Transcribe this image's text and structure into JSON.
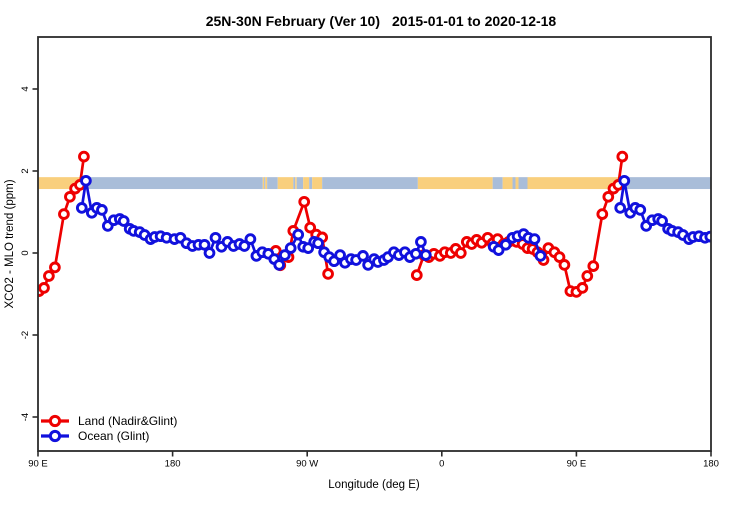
{
  "title": {
    "main": "25N-30N February (Ver 10)",
    "dates": "2015-01-01 to 2020-12-18"
  },
  "chart_data": {
    "type": "line",
    "title": "25N-30N February (Ver 10)  2015-01-01 to 2020-12-18",
    "xlabel": "Longitude (deg E)",
    "ylabel": "XCO2 - MLO trend (ppm)",
    "x_axis": {
      "range": [
        90,
        540
      ],
      "ticks": [
        90,
        180,
        270,
        360,
        450,
        540
      ],
      "tick_labels": [
        "90 E",
        "180",
        "90 W",
        "0",
        "90 E",
        "180"
      ],
      "note": "longitude wraps eastward from 90E through 180, 90W, 0, 90E, to 180"
    },
    "y_axis": {
      "range": [
        -4.83,
        5.27
      ],
      "ticks": [
        -4,
        -2,
        0,
        2,
        4
      ],
      "tick_labels": [
        "-4",
        "-2",
        "0",
        "2",
        "4"
      ]
    },
    "grid": false,
    "legend": {
      "position": "bottom-left",
      "entries": [
        {
          "label": "Land (Nadir&Glint)",
          "color": "#ee0000"
        },
        {
          "label": "Ocean (Glint)",
          "color": "#1111dd"
        }
      ]
    },
    "series": [
      {
        "name": "Land (Nadir&Glint)",
        "color": "#ee0000",
        "marker": "open-circle",
        "segments": [
          [
            [
              90.7,
              -0.93
            ],
            [
              94,
              -0.85
            ],
            [
              97.3,
              -0.56
            ],
            [
              101.3,
              -0.35
            ],
            [
              107.3,
              0.95
            ],
            [
              111.3,
              1.37
            ],
            [
              114.8,
              1.57
            ],
            [
              118,
              1.66
            ],
            [
              120.7,
              2.35
            ]
          ],
          [
            [
              249,
              0.05
            ],
            [
              252,
              -0.3
            ],
            [
              257.5,
              -0.1
            ],
            [
              260.7,
              0.54
            ],
            [
              268,
              1.25
            ],
            [
              272,
              0.62
            ],
            [
              276,
              0.45
            ],
            [
              280,
              0.38
            ],
            [
              284,
              -0.51
            ]
          ],
          [
            [
              343.3,
              -0.54
            ],
            [
              348,
              -0.05
            ],
            [
              351.3,
              -0.1
            ],
            [
              354.7,
              -0.02
            ],
            [
              358.7,
              -0.07
            ],
            [
              362,
              0.02
            ],
            [
              366,
              0
            ],
            [
              369.3,
              0.1
            ],
            [
              372.7,
              0
            ],
            [
              376.7,
              0.27
            ],
            [
              380,
              0.22
            ],
            [
              383.3,
              0.32
            ],
            [
              386.7,
              0.25
            ],
            [
              390.7,
              0.37
            ],
            [
              394,
              0.24
            ],
            [
              397.3,
              0.34
            ],
            [
              401.3,
              0.22
            ],
            [
              404.7,
              0.27
            ],
            [
              410,
              0.27
            ],
            [
              414,
              0.22
            ],
            [
              417.3,
              0.12
            ],
            [
              420.7,
              0.1
            ],
            [
              424,
              0.02
            ],
            [
              428,
              -0.17
            ],
            [
              431.3,
              0.12
            ],
            [
              435.3,
              0.02
            ],
            [
              438.7,
              -0.1
            ],
            [
              442,
              -0.29
            ],
            [
              446,
              -0.93
            ],
            [
              450,
              -0.95
            ],
            [
              454,
              -0.85
            ],
            [
              457.3,
              -0.56
            ],
            [
              461.3,
              -0.32
            ],
            [
              467.3,
              0.95
            ],
            [
              471.3,
              1.37
            ],
            [
              474.8,
              1.57
            ],
            [
              478,
              1.66
            ],
            [
              480.7,
              2.35
            ]
          ]
        ]
      },
      {
        "name": "Ocean (Glint)",
        "color": "#1111dd",
        "marker": "open-circle",
        "segments": [
          [
            [
              119.3,
              1.1
            ],
            [
              122,
              1.76
            ],
            [
              126,
              0.98
            ],
            [
              129.3,
              1.1
            ],
            [
              132.7,
              1.05
            ],
            [
              136.7,
              0.66
            ],
            [
              140.7,
              0.8
            ],
            [
              144.7,
              0.83
            ],
            [
              147.3,
              0.78
            ],
            [
              151.3,
              0.59
            ],
            [
              154,
              0.54
            ],
            [
              158,
              0.51
            ],
            [
              161.3,
              0.44
            ],
            [
              165.3,
              0.34
            ],
            [
              168,
              0.39
            ],
            [
              172,
              0.41
            ],
            [
              176,
              0.37
            ],
            [
              181.3,
              0.34
            ],
            [
              185.3,
              0.37
            ],
            [
              189.3,
              0.24
            ],
            [
              193.3,
              0.17
            ],
            [
              197.3,
              0.2
            ],
            [
              201.3,
              0.2
            ],
            [
              204.7,
              0
            ],
            [
              208.7,
              0.37
            ],
            [
              212.7,
              0.15
            ],
            [
              216.7,
              0.27
            ],
            [
              220.7,
              0.17
            ],
            [
              224.7,
              0.22
            ],
            [
              228,
              0.17
            ],
            [
              232,
              0.34
            ],
            [
              236,
              -0.07
            ],
            [
              240,
              0.02
            ],
            [
              244,
              -0.02
            ],
            [
              248,
              -0.15
            ],
            [
              251.3,
              -0.29
            ],
            [
              255,
              -0.05
            ],
            [
              259,
              0.12
            ],
            [
              264,
              0.45
            ],
            [
              267.3,
              0.15
            ],
            [
              270.7,
              0.12
            ],
            [
              274.7,
              0.27
            ],
            [
              277.3,
              0.24
            ],
            [
              281.3,
              0.02
            ],
            [
              284.7,
              -0.1
            ],
            [
              288,
              -0.2
            ],
            [
              292,
              -0.05
            ],
            [
              295.3,
              -0.24
            ],
            [
              299.3,
              -0.15
            ],
            [
              302.7,
              -0.17
            ],
            [
              307.3,
              -0.07
            ],
            [
              310.7,
              -0.29
            ],
            [
              314.7,
              -0.15
            ],
            [
              317.3,
              -0.22
            ],
            [
              321.3,
              -0.17
            ],
            [
              324,
              -0.1
            ],
            [
              328,
              0.02
            ],
            [
              331.3,
              -0.05
            ],
            [
              335.3,
              0.02
            ],
            [
              338.7,
              -0.1
            ],
            [
              342.7,
              -0.02
            ],
            [
              346,
              0.27
            ],
            [
              349.3,
              -0.05
            ]
          ],
          [
            [
              394.7,
              0.15
            ],
            [
              398,
              0.07
            ],
            [
              402.7,
              0.2
            ],
            [
              407.3,
              0.37
            ],
            [
              410.7,
              0.41
            ],
            [
              414.7,
              0.46
            ],
            [
              418,
              0.37
            ],
            [
              422,
              0.34
            ],
            [
              426,
              -0.07
            ]
          ],
          [
            [
              479.3,
              1.1
            ],
            [
              482,
              1.76
            ],
            [
              486,
              0.98
            ],
            [
              489.3,
              1.1
            ],
            [
              492.7,
              1.05
            ],
            [
              496.7,
              0.66
            ],
            [
              500.7,
              0.8
            ],
            [
              504.7,
              0.83
            ],
            [
              507.3,
              0.78
            ],
            [
              511.3,
              0.59
            ],
            [
              514,
              0.54
            ],
            [
              518,
              0.51
            ],
            [
              521.3,
              0.44
            ],
            [
              525.3,
              0.34
            ],
            [
              528,
              0.39
            ],
            [
              532,
              0.41
            ],
            [
              536,
              0.37
            ],
            [
              539.5,
              0.4
            ]
          ]
        ]
      }
    ],
    "map_band": {
      "description": "latitude-strip world map drawn across the plot near y=1.7 ppm",
      "value_top": 1.85,
      "value_bottom": 1.56,
      "land_color": "#f9cf7d",
      "ocean_color": "#a9bdd9",
      "segments": [
        {
          "from": 90,
          "to": 119,
          "type": "land"
        },
        {
          "from": 119,
          "to": 240.3,
          "type": "ocean"
        },
        {
          "from": 240.3,
          "to": 241.2,
          "type": "land"
        },
        {
          "from": 241.2,
          "to": 242,
          "type": "ocean"
        },
        {
          "from": 242,
          "to": 243.2,
          "type": "land"
        },
        {
          "from": 243.2,
          "to": 250.3,
          "type": "ocean"
        },
        {
          "from": 250.3,
          "to": 260.7,
          "type": "land"
        },
        {
          "from": 260.7,
          "to": 262,
          "type": "ocean"
        },
        {
          "from": 262,
          "to": 263,
          "type": "land"
        },
        {
          "from": 263,
          "to": 267.3,
          "type": "ocean"
        },
        {
          "from": 267.3,
          "to": 271.3,
          "type": "land"
        },
        {
          "from": 271.3,
          "to": 273.3,
          "type": "ocean"
        },
        {
          "from": 273.3,
          "to": 280,
          "type": "land"
        },
        {
          "from": 280,
          "to": 344,
          "type": "ocean"
        },
        {
          "from": 344,
          "to": 394,
          "type": "land"
        },
        {
          "from": 394,
          "to": 400.7,
          "type": "ocean"
        },
        {
          "from": 400.7,
          "to": 407.3,
          "type": "land"
        },
        {
          "from": 407.3,
          "to": 409.3,
          "type": "ocean"
        },
        {
          "from": 409.3,
          "to": 411.3,
          "type": "land"
        },
        {
          "from": 411.3,
          "to": 417.3,
          "type": "ocean"
        },
        {
          "from": 417.3,
          "to": 479,
          "type": "land"
        },
        {
          "from": 479,
          "to": 540,
          "type": "ocean"
        }
      ]
    }
  }
}
